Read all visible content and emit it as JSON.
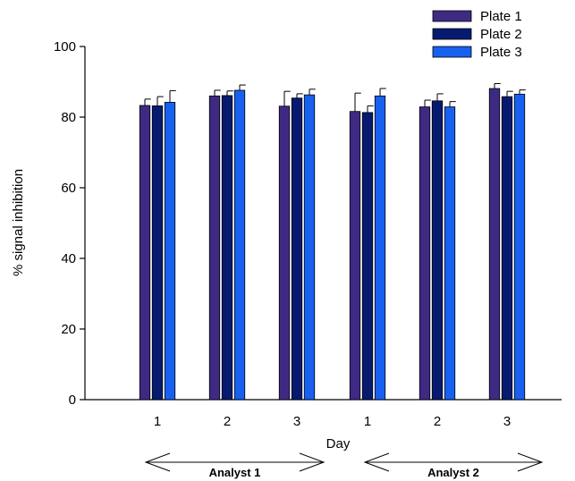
{
  "chart_data": {
    "type": "bar",
    "title": "",
    "xlabel": "Day",
    "ylabel": "% signal inhibition",
    "ylim": [
      0,
      100
    ],
    "yticks": [
      0,
      20,
      40,
      60,
      80,
      100
    ],
    "grid": false,
    "legend_position": "top-right",
    "categories": [
      "1",
      "2",
      "3",
      "1",
      "2",
      "3"
    ],
    "groups": [
      {
        "label": "Analyst 1",
        "categories": [
          "1",
          "2",
          "3"
        ]
      },
      {
        "label": "Analyst 2",
        "categories": [
          "1",
          "2",
          "3"
        ]
      }
    ],
    "series": [
      {
        "name": "Plate 1",
        "color": "#3f2a83",
        "values": [
          83.3,
          86.0,
          83.1,
          81.6,
          82.9,
          88.1
        ],
        "errors": [
          1.8,
          1.6,
          4.2,
          5.2,
          1.9,
          1.4
        ]
      },
      {
        "name": "Plate 2",
        "color": "#061a6f",
        "values": [
          83.2,
          86.1,
          85.4,
          81.3,
          84.6,
          85.8
        ],
        "errors": [
          2.6,
          1.3,
          1.2,
          1.9,
          2.0,
          1.5
        ]
      },
      {
        "name": "Plate 3",
        "color": "#1860f0",
        "values": [
          84.2,
          87.6,
          86.3,
          86.0,
          82.9,
          86.5
        ],
        "errors": [
          3.3,
          1.5,
          1.6,
          2.1,
          1.5,
          1.2
        ]
      }
    ]
  }
}
